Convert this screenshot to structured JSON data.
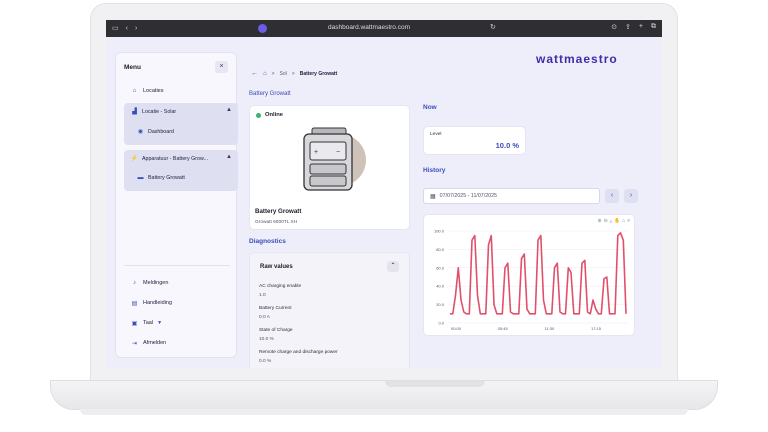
{
  "browser": {
    "url": "dashboard.wattmaestro.com"
  },
  "sidebar": {
    "title": "Menu",
    "close": "×",
    "items": [
      {
        "label": "Locaties"
      },
      {
        "label": "Locatie - Solar"
      },
      {
        "label": "Dashboard"
      },
      {
        "label": "Apparatuur - Battery Grow..."
      },
      {
        "label": "Battery Growatt"
      }
    ],
    "bottom": [
      {
        "label": "Meldingen"
      },
      {
        "label": "Handleiding"
      },
      {
        "label": "Taal"
      },
      {
        "label": "Afmelden"
      }
    ]
  },
  "header": {
    "logo": "wattmaestro",
    "breadcrumb": [
      "Sol",
      "Battery Growatt"
    ],
    "page_title": "Battery Growatt"
  },
  "device": {
    "status": "Online",
    "name": "Battery Growatt",
    "model": "Growatt 6000TL XH"
  },
  "diagnostics": {
    "title": "Diagnostics",
    "raw_title": "Raw values",
    "rows": [
      {
        "label": "AC charging enable",
        "value": "1.0"
      },
      {
        "label": "Battery Current",
        "value": "0.0 A"
      },
      {
        "label": "State of Charge",
        "value": "10.0 %"
      },
      {
        "label": "Remote charge and discharge power",
        "value": "0.0 %"
      }
    ]
  },
  "now": {
    "title": "Now",
    "level_label": "Level",
    "level_value": "10.0 %"
  },
  "history": {
    "title": "History",
    "date_range": "07/07/2025 - 11/07/2025"
  },
  "colors": {
    "accent": "#3b4cb8",
    "line": "#e0506b",
    "online": "#3cb371"
  },
  "chart_data": {
    "type": "line",
    "x_ticks": [
      "00:00",
      "05:45",
      "11:30",
      "17:15"
    ],
    "y_ticks": [
      "0.0",
      "20.0",
      "40.0",
      "60.0",
      "80.0",
      "100.0"
    ],
    "ylim": [
      0,
      100
    ],
    "series": [
      {
        "values": [
          10,
          10,
          30,
          60,
          25,
          12,
          10,
          10,
          90,
          95,
          30,
          10,
          10,
          10,
          85,
          95,
          20,
          10,
          10,
          10,
          60,
          65,
          12,
          10,
          10,
          10,
          70,
          75,
          15,
          10,
          10,
          10,
          90,
          95,
          25,
          10,
          10,
          10,
          60,
          65,
          12,
          10,
          10,
          60,
          55,
          10,
          10,
          10,
          65,
          68,
          12,
          10,
          25,
          15,
          10,
          10,
          48,
          50,
          10,
          10,
          10,
          95,
          98,
          90,
          10
        ]
      }
    ]
  }
}
